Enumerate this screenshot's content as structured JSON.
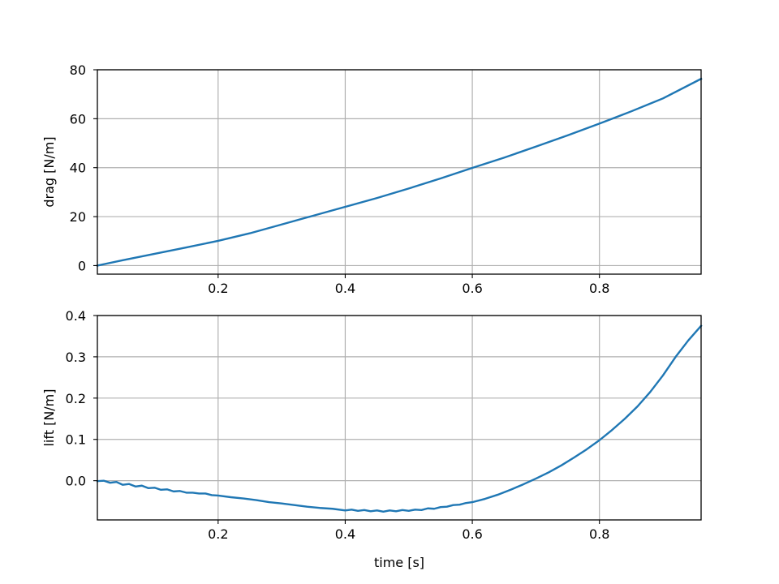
{
  "chart_data": [
    {
      "type": "line",
      "ylabel": "drag [N/m]",
      "xlabel": "",
      "xlim": [
        0.01,
        0.96
      ],
      "ylim": [
        -3.5,
        80
      ],
      "grid": true,
      "xticks": [
        0.2,
        0.4,
        0.6,
        0.8
      ],
      "xtick_labels": [
        "0.2",
        "0.4",
        "0.6",
        "0.8"
      ],
      "yticks": [
        0,
        20,
        40,
        60,
        80
      ],
      "ytick_labels": [
        "0",
        "20",
        "40",
        "60",
        "80"
      ],
      "series": [
        {
          "color": "#1f77b4",
          "x": [
            0.01,
            0.05,
            0.1,
            0.15,
            0.2,
            0.25,
            0.3,
            0.35,
            0.4,
            0.45,
            0.5,
            0.55,
            0.6,
            0.65,
            0.7,
            0.75,
            0.8,
            0.85,
            0.9,
            0.96
          ],
          "y": [
            0.0,
            2.2,
            4.8,
            7.4,
            10.1,
            13.2,
            16.8,
            20.4,
            24.0,
            27.6,
            31.5,
            35.6,
            39.9,
            44.1,
            48.6,
            53.2,
            58.0,
            63.0,
            68.3,
            76.3
          ]
        }
      ]
    },
    {
      "type": "line",
      "ylabel": "lift [N/m]",
      "xlabel": "time [s]",
      "xlim": [
        0.01,
        0.96
      ],
      "ylim": [
        -0.095,
        0.4
      ],
      "grid": true,
      "xticks": [
        0.2,
        0.4,
        0.6,
        0.8
      ],
      "xtick_labels": [
        "0.2",
        "0.4",
        "0.6",
        "0.8"
      ],
      "yticks": [
        0.0,
        0.1,
        0.2,
        0.3,
        0.4
      ],
      "ytick_labels": [
        "0.0",
        "0.1",
        "0.2",
        "0.3",
        "0.4"
      ],
      "series": [
        {
          "color": "#1f77b4",
          "x": [
            0.01,
            0.02,
            0.03,
            0.04,
            0.05,
            0.06,
            0.07,
            0.08,
            0.09,
            0.1,
            0.11,
            0.12,
            0.13,
            0.14,
            0.15,
            0.16,
            0.17,
            0.18,
            0.19,
            0.2,
            0.22,
            0.24,
            0.26,
            0.28,
            0.3,
            0.32,
            0.34,
            0.36,
            0.38,
            0.4,
            0.41,
            0.42,
            0.43,
            0.44,
            0.45,
            0.46,
            0.47,
            0.48,
            0.49,
            0.5,
            0.51,
            0.52,
            0.53,
            0.54,
            0.55,
            0.56,
            0.57,
            0.58,
            0.59,
            0.6,
            0.62,
            0.64,
            0.66,
            0.68,
            0.7,
            0.72,
            0.74,
            0.76,
            0.78,
            0.8,
            0.82,
            0.84,
            0.86,
            0.88,
            0.9,
            0.92,
            0.94,
            0.96
          ],
          "y": [
            -0.001,
            0.0,
            -0.005,
            -0.003,
            -0.01,
            -0.008,
            -0.014,
            -0.012,
            -0.018,
            -0.017,
            -0.022,
            -0.021,
            -0.026,
            -0.025,
            -0.029,
            -0.029,
            -0.031,
            -0.031,
            -0.035,
            -0.036,
            -0.04,
            -0.043,
            -0.047,
            -0.052,
            -0.055,
            -0.059,
            -0.063,
            -0.066,
            -0.068,
            -0.072,
            -0.07,
            -0.073,
            -0.071,
            -0.074,
            -0.072,
            -0.075,
            -0.072,
            -0.074,
            -0.071,
            -0.073,
            -0.07,
            -0.071,
            -0.067,
            -0.068,
            -0.064,
            -0.063,
            -0.059,
            -0.058,
            -0.054,
            -0.052,
            -0.044,
            -0.034,
            -0.022,
            -0.009,
            0.005,
            0.02,
            0.037,
            0.056,
            0.076,
            0.098,
            0.123,
            0.15,
            0.18,
            0.215,
            0.255,
            0.3,
            0.34,
            0.375
          ]
        }
      ]
    }
  ]
}
